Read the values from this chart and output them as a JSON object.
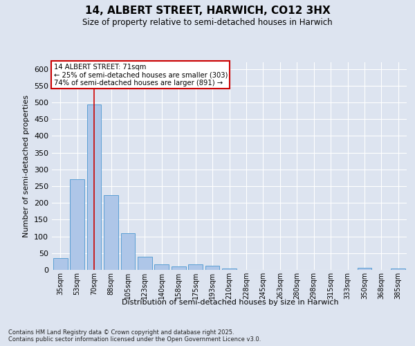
{
  "title_line1": "14, ALBERT STREET, HARWICH, CO12 3HX",
  "title_line2": "Size of property relative to semi-detached houses in Harwich",
  "xlabel": "Distribution of semi-detached houses by size in Harwich",
  "ylabel": "Number of semi-detached properties",
  "categories": [
    "35sqm",
    "53sqm",
    "70sqm",
    "88sqm",
    "105sqm",
    "123sqm",
    "140sqm",
    "158sqm",
    "175sqm",
    "193sqm",
    "210sqm",
    "228sqm",
    "245sqm",
    "263sqm",
    "280sqm",
    "298sqm",
    "315sqm",
    "333sqm",
    "350sqm",
    "368sqm",
    "385sqm"
  ],
  "values": [
    35,
    270,
    493,
    224,
    110,
    40,
    17,
    10,
    17,
    13,
    5,
    1,
    1,
    1,
    0,
    0,
    0,
    0,
    7,
    0,
    5
  ],
  "bar_color": "#aec6e8",
  "bar_edge_color": "#5a9fd4",
  "vline_x": 2,
  "vline_color": "#cc0000",
  "annotation_title": "14 ALBERT STREET: 71sqm",
  "annotation_line2": "← 25% of semi-detached houses are smaller (303)",
  "annotation_line3": "74% of semi-detached houses are larger (891) →",
  "annotation_box_color": "#cc0000",
  "ylim": [
    0,
    620
  ],
  "yticks": [
    0,
    50,
    100,
    150,
    200,
    250,
    300,
    350,
    400,
    450,
    500,
    550,
    600
  ],
  "footer_line1": "Contains HM Land Registry data © Crown copyright and database right 2025.",
  "footer_line2": "Contains public sector information licensed under the Open Government Licence v3.0.",
  "bg_color": "#dde4f0",
  "plot_bg_color": "#dde4f0"
}
